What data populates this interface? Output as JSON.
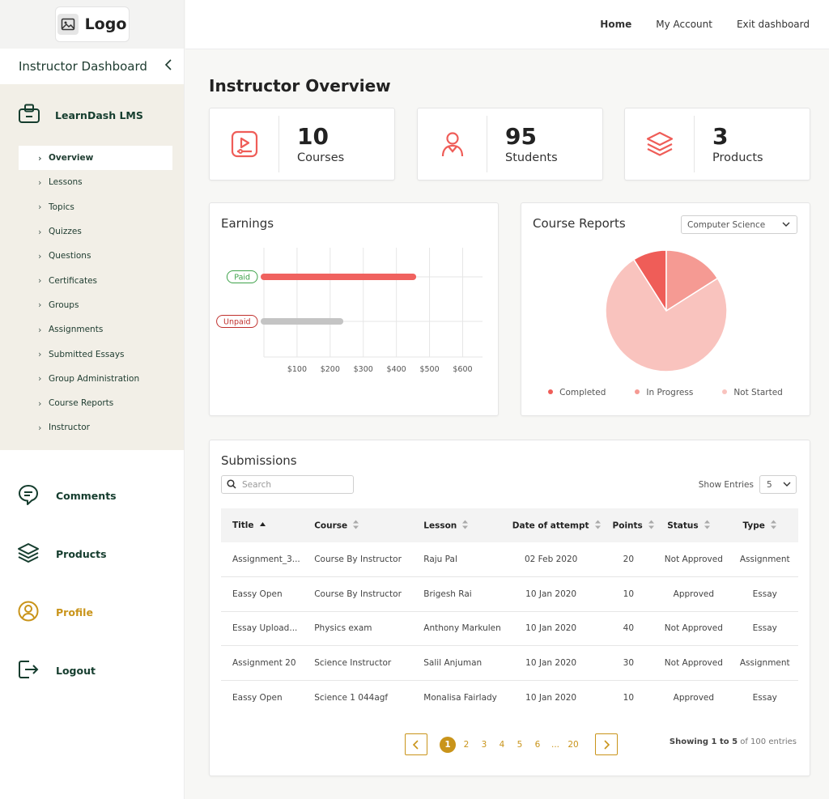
{
  "logo": {
    "text": "Logo"
  },
  "sidebar": {
    "title": "Instructor Dashboard",
    "lms_title": "LearnDash LMS",
    "sub_items": [
      "Overview",
      "Lessons",
      "Topics",
      "Quizzes",
      "Questions",
      "Certificates",
      "Groups",
      "Assignments",
      "Submitted Essays",
      "Group Administration",
      "Course Reports",
      "Instructor"
    ],
    "active_sub_item": "Overview",
    "main_items": [
      {
        "label": "Comments",
        "icon": "comment-icon"
      },
      {
        "label": "Products",
        "icon": "layers-icon"
      },
      {
        "label": "Profile",
        "icon": "user-circle-icon"
      },
      {
        "label": "Logout",
        "icon": "logout-icon"
      }
    ]
  },
  "topbar": {
    "home": "Home",
    "account": "My Account",
    "exit": "Exit dashboard"
  },
  "page_title": "Instructor Overview",
  "stats": [
    {
      "value": "10",
      "label": "Courses",
      "icon": "video-course-icon"
    },
    {
      "value": "95",
      "label": "Students",
      "icon": "student-icon"
    },
    {
      "value": "3",
      "label": "Products",
      "icon": "layers-icon"
    }
  ],
  "earnings": {
    "title": "Earnings",
    "chart_data": {
      "type": "bar",
      "orientation": "horizontal",
      "categories": [
        "Paid",
        "Unpaid"
      ],
      "values": [
        450,
        230
      ],
      "colors": [
        "#f0625f",
        "#c4c4c4"
      ],
      "ticks": [
        "$100",
        "$200",
        "$300",
        "$400",
        "$500",
        "$600"
      ],
      "xlim": [
        0,
        660
      ],
      "grid": true
    }
  },
  "course_reports": {
    "title": "Course Reports",
    "selected_course": "Computer Science",
    "chart_data": {
      "type": "pie",
      "labels": [
        "Completed",
        "In Progress",
        "Not Started"
      ],
      "values": [
        9,
        16,
        75
      ],
      "colors": [
        "#ef5d58",
        "#f59a93",
        "#f9c3be"
      ],
      "legend": "bottom"
    }
  },
  "submissions": {
    "title": "Submissions",
    "search_placeholder": "Search",
    "show_entries_label": "Show Entries",
    "entries_value": "5",
    "columns": [
      "Title",
      "Course",
      "Lesson",
      "Date of attempt",
      "Points",
      "Status",
      "Type"
    ],
    "rows": [
      [
        "Assignment_3...",
        "Course By Instructor",
        "Raju Pal",
        "02 Feb 2020",
        "20",
        "Not Approved",
        "Assignment"
      ],
      [
        "Eassy Open",
        "Course By Instructor",
        "Brigesh Rai",
        "10 Jan 2020",
        "10",
        "Approved",
        "Essay"
      ],
      [
        "Essay Upload...",
        "Physics exam",
        "Anthony Markulen",
        "10 Jan 2020",
        "40",
        "Not Approved",
        "Essay"
      ],
      [
        "Assignment 20",
        "Science Instructor",
        "Salil Anjuman",
        "10 Jan 2020",
        "30",
        "Not Approved",
        "Assignment"
      ],
      [
        "Eassy Open",
        "Science 1 044agf",
        "Monalisa Fairlady",
        "10 Jan 2020",
        "10",
        "Approved",
        "Essay"
      ]
    ],
    "pagination": {
      "pages": [
        "1",
        "2",
        "3",
        "4",
        "5",
        "6",
        "...",
        "20"
      ],
      "current": "1",
      "showing_prefix": "Showing 1 to 5",
      "showing_suffix": " of 100 entries"
    }
  },
  "colors": {
    "accent_red": "#ef5d58",
    "dark_green": "#153d2e",
    "gold": "#c9941a",
    "sidebar_tint": "#f2efe7"
  }
}
